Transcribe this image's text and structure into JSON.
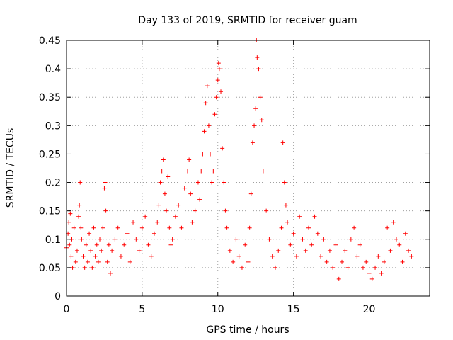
{
  "chart_data": {
    "type": "scatter",
    "title": "Day 133 of 2019, SRMTID for receiver guam",
    "xlabel": "GPS time / hours",
    "ylabel": "SRMTID / TECUs",
    "xlim": [
      0,
      24
    ],
    "ylim": [
      0,
      0.45
    ],
    "xticks": [
      "0",
      "5",
      "10",
      "15",
      "20"
    ],
    "yticks": [
      "0",
      "0.05",
      "0.1",
      "0.15",
      "0.2",
      "0.25",
      "0.3",
      "0.35",
      "0.4",
      "0.45"
    ],
    "grid": true,
    "marker": "plus",
    "color": "#ff0000",
    "series": [
      {
        "x": [
          0.0,
          0.1,
          0.15,
          0.2,
          0.25,
          0.3,
          0.35,
          0.4,
          0.5,
          0.6,
          0.7,
          0.8,
          0.85,
          0.9,
          0.95,
          1.0,
          1.1,
          1.2,
          1.3,
          1.4,
          1.5,
          1.6,
          1.7,
          1.8,
          1.9,
          2.0,
          2.1,
          2.2,
          2.3,
          2.4,
          2.5,
          2.55,
          2.6,
          2.7,
          2.8,
          2.9,
          3.0,
          3.2,
          3.4,
          3.6,
          3.8,
          4.0,
          4.2,
          4.4,
          4.6,
          4.8,
          5.0,
          5.2,
          5.4,
          5.6,
          5.8,
          6.0,
          6.1,
          6.2,
          6.3,
          6.4,
          6.5,
          6.6,
          6.7,
          6.8,
          6.9,
          7.0,
          7.2,
          7.4,
          7.6,
          7.8,
          8.0,
          8.1,
          8.2,
          8.3,
          8.5,
          8.7,
          8.8,
          8.9,
          9.0,
          9.1,
          9.2,
          9.3,
          9.4,
          9.5,
          9.6,
          9.7,
          9.8,
          9.9,
          10.0,
          10.05,
          10.1,
          10.2,
          10.3,
          10.4,
          10.5,
          10.6,
          10.8,
          11.0,
          11.2,
          11.4,
          11.6,
          11.8,
          12.0,
          12.1,
          12.2,
          12.3,
          12.4,
          12.5,
          12.55,
          12.6,
          12.7,
          12.8,
          12.9,
          13.0,
          13.2,
          13.4,
          13.6,
          13.8,
          14.0,
          14.2,
          14.3,
          14.4,
          14.5,
          14.6,
          14.8,
          15.0,
          15.2,
          15.4,
          15.6,
          15.8,
          16.0,
          16.2,
          16.4,
          16.6,
          16.8,
          17.0,
          17.2,
          17.4,
          17.6,
          17.8,
          18.0,
          18.2,
          18.4,
          18.6,
          18.8,
          19.0,
          19.2,
          19.4,
          19.6,
          19.8,
          20.0,
          20.2,
          20.4,
          20.6,
          20.8,
          21.0,
          21.2,
          21.4,
          21.6,
          21.8,
          22.0,
          22.2,
          22.4,
          22.6,
          22.8
        ],
        "y": [
          0.085,
          0.11,
          0.13,
          0.09,
          0.145,
          0.07,
          0.1,
          0.05,
          0.12,
          0.06,
          0.08,
          0.14,
          0.16,
          0.2,
          0.12,
          0.1,
          0.07,
          0.05,
          0.09,
          0.06,
          0.11,
          0.08,
          0.05,
          0.12,
          0.07,
          0.09,
          0.06,
          0.1,
          0.08,
          0.12,
          0.19,
          0.2,
          0.15,
          0.06,
          0.09,
          0.04,
          0.08,
          0.1,
          0.12,
          0.07,
          0.09,
          0.11,
          0.06,
          0.13,
          0.1,
          0.08,
          0.12,
          0.14,
          0.09,
          0.07,
          0.11,
          0.13,
          0.16,
          0.2,
          0.22,
          0.24,
          0.18,
          0.15,
          0.21,
          0.12,
          0.09,
          0.1,
          0.14,
          0.16,
          0.12,
          0.19,
          0.22,
          0.24,
          0.18,
          0.13,
          0.15,
          0.2,
          0.17,
          0.22,
          0.25,
          0.29,
          0.34,
          0.37,
          0.3,
          0.25,
          0.2,
          0.22,
          0.32,
          0.35,
          0.38,
          0.41,
          0.4,
          0.36,
          0.26,
          0.2,
          0.15,
          0.12,
          0.08,
          0.06,
          0.1,
          0.07,
          0.05,
          0.09,
          0.06,
          0.12,
          0.18,
          0.27,
          0.3,
          0.33,
          0.45,
          0.42,
          0.4,
          0.35,
          0.31,
          0.22,
          0.15,
          0.1,
          0.07,
          0.05,
          0.08,
          0.12,
          0.27,
          0.2,
          0.16,
          0.13,
          0.09,
          0.11,
          0.07,
          0.14,
          0.1,
          0.08,
          0.12,
          0.09,
          0.14,
          0.11,
          0.07,
          0.1,
          0.06,
          0.08,
          0.05,
          0.09,
          0.03,
          0.06,
          0.08,
          0.05,
          0.1,
          0.12,
          0.07,
          0.09,
          0.05,
          0.06,
          0.04,
          0.03,
          0.05,
          0.07,
          0.04,
          0.06,
          0.12,
          0.08,
          0.13,
          0.1,
          0.09,
          0.06,
          0.11,
          0.08,
          0.07
        ]
      }
    ]
  }
}
